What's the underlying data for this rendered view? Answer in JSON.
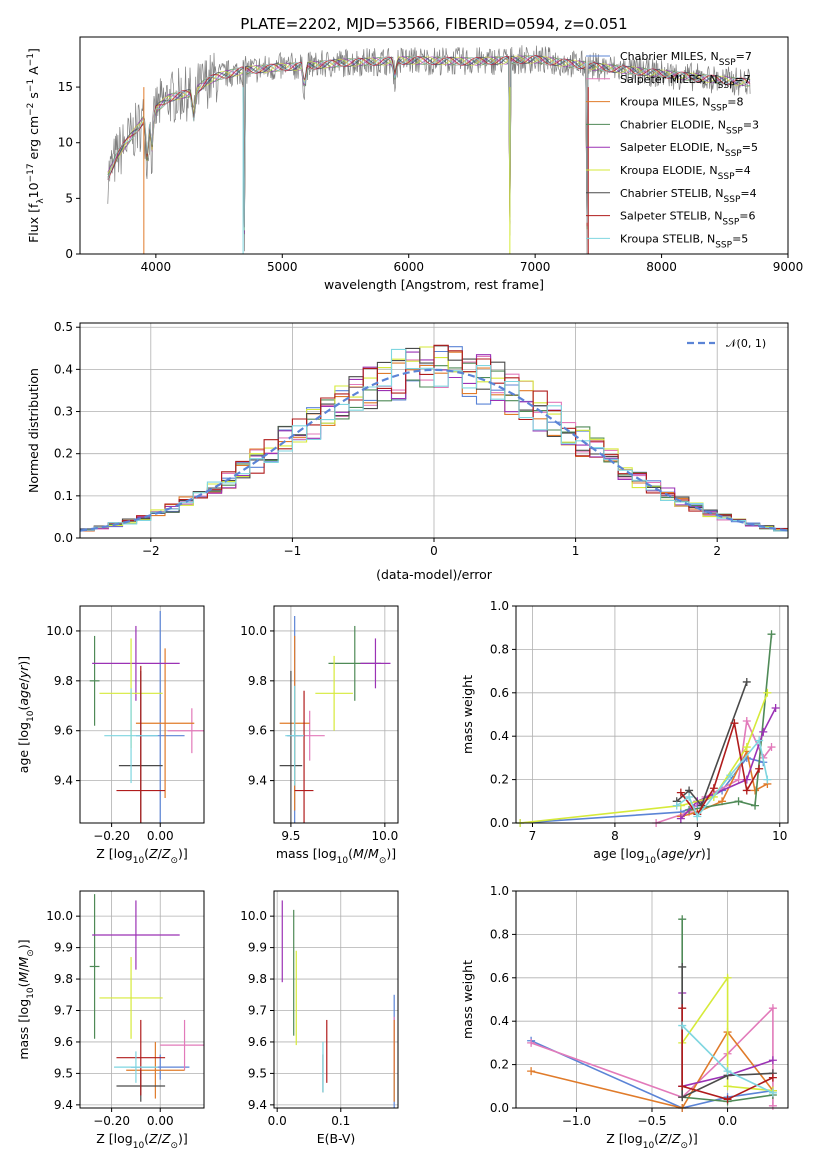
{
  "series_styles": [
    {
      "name": "Chabrier MILES, N$_{SSP}$=7",
      "label_main": "Chabrier MILES, N",
      "label_sub": "SSP",
      "label_tail": "=7",
      "color": "#5b84d6"
    },
    {
      "name": "Salpeter MILES, N$_{SSP}$=7",
      "label_main": "Salpeter MILES, N",
      "label_sub": "SSP",
      "label_tail": "=7",
      "color": "#e27aba"
    },
    {
      "name": "Kroupa MILES, N$_{SSP}$=8",
      "label_main": "Kroupa MILES, N",
      "label_sub": "SSP",
      "label_tail": "=8",
      "color": "#e07b2a"
    },
    {
      "name": "Chabrier ELODIE, N$_{SSP}$=3",
      "label_main": "Chabrier ELODIE, N",
      "label_sub": "SSP",
      "label_tail": "=3",
      "color": "#4f8a57"
    },
    {
      "name": "Salpeter ELODIE, N$_{SSP}$=5",
      "label_main": "Salpeter ELODIE, N",
      "label_sub": "SSP",
      "label_tail": "=5",
      "color": "#9b32b5"
    },
    {
      "name": "Kroupa ELODIE, N$_{SSP}$=4",
      "label_main": "Kroupa ELODIE, N",
      "label_sub": "SSP",
      "label_tail": "=4",
      "color": "#d6ea3a"
    },
    {
      "name": "Chabrier STELIB, N$_{SSP}$=4",
      "label_main": "Chabrier STELIB, N",
      "label_sub": "SSP",
      "label_tail": "=4",
      "color": "#4a4a4a"
    },
    {
      "name": "Salpeter STELIB, N$_{SSP}$=6",
      "label_main": "Salpeter STELIB, N",
      "label_sub": "SSP",
      "label_tail": "=6",
      "color": "#b01c1c"
    },
    {
      "name": "Kroupa STELIB, N$_{SSP}$=5",
      "label_main": "Kroupa STELIB, N",
      "label_sub": "SSP",
      "label_tail": "=5",
      "color": "#7fd6e0"
    }
  ],
  "chart_data": [
    {
      "id": "spectrum",
      "type": "line",
      "title": "PLATE=2202, MJD=53566, FIBERID=0594, z=0.051",
      "xlabel": "wavelength [Angstrom, rest frame]",
      "ylabel_main": "Flux [f",
      "ylabel_lambda": "λ",
      "ylabel_mid": "10",
      "ylabel_exp": "−17",
      "ylabel_tail": " erg cm",
      "ylabel_exp2": "−2",
      "ylabel_tail2": " s",
      "ylabel_exp3": "−1",
      "ylabel_tail3": " A",
      "ylabel_exp4": "−1",
      "ylabel_end": "]",
      "xlim": [
        3400,
        9000
      ],
      "ylim": [
        0,
        19.5
      ],
      "xticks": [
        4000,
        5000,
        6000,
        7000,
        8000,
        9000
      ],
      "yticks": [
        0,
        5,
        10,
        15
      ],
      "legend_position": "right",
      "data_color": "#808080",
      "continuum": [
        [
          3620,
          7.0
        ],
        [
          3700,
          9.0
        ],
        [
          3800,
          10.5
        ],
        [
          3900,
          12.0
        ],
        [
          3950,
          12.5
        ],
        [
          4000,
          13.0
        ],
        [
          4100,
          14.0
        ],
        [
          4200,
          14.3
        ],
        [
          4300,
          14.5
        ],
        [
          4400,
          15.5
        ],
        [
          4500,
          16.0
        ],
        [
          4700,
          16.5
        ],
        [
          5000,
          16.8
        ],
        [
          5200,
          16.9
        ],
        [
          5500,
          17.2
        ],
        [
          6000,
          17.4
        ],
        [
          6500,
          17.3
        ],
        [
          7000,
          17.5
        ],
        [
          7500,
          16.8
        ],
        [
          8000,
          16.2
        ],
        [
          8500,
          15.6
        ],
        [
          8700,
          15.4
        ]
      ],
      "absorption_lines": [
        [
          3933,
          4.0
        ],
        [
          3968,
          3.5
        ],
        [
          4300,
          2.5
        ],
        [
          4700,
          16.0
        ],
        [
          5175,
          2.0
        ],
        [
          5890,
          1.5
        ],
        [
          6800,
          16.0
        ],
        [
          7410,
          16.0
        ]
      ],
      "grid": false
    },
    {
      "id": "residuals",
      "type": "histogram",
      "xlabel": "(data-model)/error",
      "ylabel": "Normed distribution",
      "xlim": [
        -2.5,
        2.5
      ],
      "ylim": [
        0,
        0.51
      ],
      "xticks": [
        -2,
        -1,
        0,
        1,
        2
      ],
      "yticks": [
        0.0,
        0.1,
        0.2,
        0.3,
        0.4,
        0.5
      ],
      "bin_width": 0.1,
      "legend_label": "𝒩(0, 1)",
      "legend_position": "top-right",
      "reference_color": "#5b84d6",
      "grid": true
    },
    {
      "id": "age-vs-Z",
      "type": "errorbar",
      "xlabel": "Z [log",
      "xlabel_sub": "10",
      "xlabel_tail": "(Z/Z",
      "xlabel_sub2": "⊙",
      "xlabel_end": ")]",
      "ylabel": "age  [log",
      "ylabel_sub": "10",
      "ylabel_tail": "(age/yr)]",
      "xlim": [
        -0.33,
        0.18
      ],
      "ylim": [
        9.23,
        10.1
      ],
      "xticks": [
        -0.2,
        0.0
      ],
      "xticklabels": [
        "−0.20",
        "0.00"
      ],
      "yticks": [
        9.4,
        9.6,
        9.8,
        10.0
      ],
      "points": [
        {
          "series": 0,
          "x": 0.0,
          "xerr": 0.1,
          "y": 9.58,
          "yerr": 0.5
        },
        {
          "series": 1,
          "x": 0.13,
          "xerr": 0.1,
          "y": 9.6,
          "yerr": 0.09
        },
        {
          "series": 2,
          "x": 0.02,
          "xerr": 0.12,
          "y": 9.63,
          "yerr": 0.3
        },
        {
          "series": 3,
          "x": -0.27,
          "xerr": 0.02,
          "y": 9.8,
          "yerr": 0.18
        },
        {
          "series": 4,
          "x": -0.1,
          "xerr": 0.18,
          "y": 9.87,
          "yerr": 0.15
        },
        {
          "series": 5,
          "x": -0.12,
          "xerr": 0.13,
          "y": 9.75,
          "yerr": 0.22
        },
        {
          "series": 6,
          "x": -0.08,
          "xerr": 0.09,
          "y": 9.46,
          "yerr": 0.38
        },
        {
          "series": 7,
          "x": -0.08,
          "xerr": 0.1,
          "y": 9.36,
          "yerr": 0.5
        },
        {
          "series": 8,
          "x": -0.12,
          "xerr": 0.11,
          "y": 9.58,
          "yerr": 0.19
        }
      ],
      "grid": true
    },
    {
      "id": "age-vs-mass",
      "type": "errorbar",
      "xlabel": "mass [log",
      "xlabel_sub": "10",
      "xlabel_tail": "(M/M",
      "xlabel_sub2": "⊙",
      "xlabel_end": ")]",
      "xlim": [
        9.41,
        10.07
      ],
      "ylim": [
        9.23,
        10.1
      ],
      "xticks": [
        9.5,
        10.0
      ],
      "xticklabels": [
        "9.5",
        "10.0"
      ],
      "yticks": [
        9.4,
        9.6,
        9.8,
        10.0
      ],
      "points": [
        {
          "series": 0,
          "x": 9.52,
          "xerr": 0.04,
          "y": 9.58,
          "yerr": 0.48
        },
        {
          "series": 1,
          "x": 9.6,
          "xerr": 0.08,
          "y": 9.58,
          "yerr": 0.1
        },
        {
          "series": 2,
          "x": 9.52,
          "xerr": 0.08,
          "y": 9.63,
          "yerr": 0.35
        },
        {
          "series": 3,
          "x": 9.84,
          "xerr": 0.14,
          "y": 9.87,
          "yerr": 0.15
        },
        {
          "series": 4,
          "x": 9.95,
          "xerr": 0.08,
          "y": 9.87,
          "yerr": 0.1
        },
        {
          "series": 5,
          "x": 9.73,
          "xerr": 0.1,
          "y": 9.75,
          "yerr": 0.15
        },
        {
          "series": 6,
          "x": 9.5,
          "xerr": 0.06,
          "y": 9.46,
          "yerr": 0.38
        },
        {
          "series": 7,
          "x": 9.57,
          "xerr": 0.05,
          "y": 9.36,
          "yerr": 0.4
        },
        {
          "series": 8,
          "x": 9.52,
          "xerr": 0.05,
          "y": 9.58,
          "yerr": 0.2
        }
      ],
      "grid": true
    },
    {
      "id": "weight-vs-age",
      "type": "line",
      "xlabel": "age  [log",
      "xlabel_sub": "10",
      "xlabel_tail": "(age/yr)]",
      "ylabel": "mass weight",
      "xlim": [
        6.8,
        10.1
      ],
      "ylim": [
        0,
        1.0
      ],
      "xticks": [
        7,
        8,
        9,
        10
      ],
      "yticks": [
        0.0,
        0.2,
        0.4,
        0.6,
        0.8,
        1.0
      ],
      "series": [
        {
          "series": 0,
          "x": [
            6.85,
            8.8,
            9.0,
            9.3,
            9.6,
            9.8
          ],
          "y": [
            0.0,
            0.05,
            0.08,
            0.15,
            0.3,
            0.28
          ]
        },
        {
          "series": 1,
          "x": [
            8.5,
            8.9,
            9.1,
            9.5,
            9.6,
            9.8,
            9.9
          ],
          "y": [
            0.0,
            0.05,
            0.12,
            0.2,
            0.47,
            0.3,
            0.35
          ]
        },
        {
          "series": 2,
          "x": [
            8.8,
            9.0,
            9.3,
            9.6,
            9.7,
            9.85
          ],
          "y": [
            0.03,
            0.05,
            0.1,
            0.33,
            0.15,
            0.18
          ]
        },
        {
          "series": 3,
          "x": [
            8.9,
            9.5,
            9.7,
            9.9
          ],
          "y": [
            0.06,
            0.1,
            0.08,
            0.87
          ]
        },
        {
          "series": 4,
          "x": [
            8.8,
            9.0,
            9.6,
            9.8,
            9.95
          ],
          "y": [
            0.02,
            0.1,
            0.2,
            0.42,
            0.53
          ]
        },
        {
          "series": 5,
          "x": [
            6.85,
            8.8,
            9.2,
            9.6,
            9.85
          ],
          "y": [
            0.0,
            0.08,
            0.12,
            0.35,
            0.6
          ]
        },
        {
          "series": 6,
          "x": [
            8.75,
            8.9,
            9.05,
            9.6
          ],
          "y": [
            0.1,
            0.15,
            0.08,
            0.65
          ]
        },
        {
          "series": 7,
          "x": [
            8.8,
            9.0,
            9.2,
            9.45,
            9.6,
            9.75
          ],
          "y": [
            0.14,
            0.04,
            0.16,
            0.46,
            0.15,
            0.25
          ]
        },
        {
          "series": 8,
          "x": [
            8.75,
            8.9,
            9.0,
            9.4,
            9.75,
            9.85
          ],
          "y": [
            0.08,
            0.12,
            0.03,
            0.22,
            0.38,
            0.2
          ]
        }
      ],
      "grid": true
    },
    {
      "id": "mass-vs-Z",
      "type": "errorbar",
      "xlabel": "Z [log",
      "xlabel_sub": "10",
      "xlabel_tail": "(Z/Z",
      "xlabel_sub2": "⊙",
      "xlabel_end": ")]",
      "ylabel": "mass [log",
      "ylabel_sub": "10",
      "ylabel_tail": "(M/M",
      "ylabel_sub2": "⊙",
      "ylabel_end": ")]",
      "xlim": [
        -0.33,
        0.18
      ],
      "ylim": [
        9.39,
        10.08
      ],
      "xticks": [
        -0.2,
        0.0
      ],
      "xticklabels": [
        "−0.20",
        "0.00"
      ],
      "yticks": [
        9.4,
        9.5,
        9.6,
        9.7,
        9.8,
        9.9,
        10.0
      ],
      "points": [
        {
          "series": 0,
          "x": 0.0,
          "xerr": 0.12,
          "y": 9.52,
          "yerr": 0.04
        },
        {
          "series": 1,
          "x": 0.1,
          "xerr": 0.1,
          "y": 9.59,
          "yerr": 0.08
        },
        {
          "series": 2,
          "x": -0.02,
          "xerr": 0.12,
          "y": 9.51,
          "yerr": 0.09
        },
        {
          "series": 3,
          "x": -0.27,
          "xerr": 0.02,
          "y": 9.84,
          "yerr": 0.23
        },
        {
          "series": 4,
          "x": -0.1,
          "xerr": 0.18,
          "y": 9.94,
          "yerr": 0.11
        },
        {
          "series": 5,
          "x": -0.12,
          "xerr": 0.13,
          "y": 9.74,
          "yerr": 0.13
        },
        {
          "series": 6,
          "x": -0.08,
          "xerr": 0.1,
          "y": 9.46,
          "yerr": 0.05
        },
        {
          "series": 7,
          "x": -0.08,
          "xerr": 0.1,
          "y": 9.55,
          "yerr": 0.12
        },
        {
          "series": 8,
          "x": -0.1,
          "xerr": 0.09,
          "y": 9.52,
          "yerr": 0.05
        }
      ],
      "grid": true
    },
    {
      "id": "mass-vs-ebv",
      "type": "errorbar",
      "xlabel": "E(B-V)",
      "xlim": [
        -0.005,
        0.19
      ],
      "ylim": [
        9.39,
        10.08
      ],
      "xticks": [
        0.0,
        0.1
      ],
      "xticklabels": [
        "0.0",
        "0.1"
      ],
      "yticks": [
        9.4,
        9.5,
        9.6,
        9.7,
        9.8,
        9.9,
        10.0
      ],
      "points": [
        {
          "series": 0,
          "x": 0.184,
          "xerr": 0.0,
          "y": 9.55,
          "yerr": 0.2
        },
        {
          "series": 1,
          "x": 0.184,
          "xerr": 0.0,
          "y": 9.59,
          "yerr": 0.09
        },
        {
          "series": 2,
          "x": 0.184,
          "xerr": 0.0,
          "y": 9.54,
          "yerr": 0.13
        },
        {
          "series": 3,
          "x": 0.026,
          "xerr": 0.0,
          "y": 9.82,
          "yerr": 0.2
        },
        {
          "series": 4,
          "x": 0.008,
          "xerr": 0.0,
          "y": 9.92,
          "yerr": 0.13
        },
        {
          "series": 5,
          "x": 0.03,
          "xerr": 0.0,
          "y": 9.74,
          "yerr": 0.15
        },
        {
          "series": 6,
          "x": 0.072,
          "xerr": 0.0,
          "y": 9.5,
          "yerr": 0.06
        },
        {
          "series": 7,
          "x": 0.078,
          "xerr": 0.0,
          "y": 9.57,
          "yerr": 0.1
        },
        {
          "series": 8,
          "x": 0.072,
          "xerr": 0.0,
          "y": 9.52,
          "yerr": 0.08
        }
      ],
      "grid": true
    },
    {
      "id": "weight-vs-Z",
      "type": "line",
      "xlabel": "Z [log",
      "xlabel_sub": "10",
      "xlabel_tail": "(Z/Z",
      "xlabel_sub2": "⊙",
      "xlabel_end": ")]",
      "ylabel": "mass weight",
      "xlim": [
        -1.4,
        0.4
      ],
      "ylim": [
        0,
        1.0
      ],
      "xticks": [
        -1.0,
        -0.5,
        0.0
      ],
      "xticklabels": [
        "−1.0",
        "−0.5",
        "0.0"
      ],
      "yticks": [
        0.0,
        0.2,
        0.4,
        0.6,
        0.8,
        1.0
      ],
      "series": [
        {
          "series": 0,
          "x": [
            -1.3,
            -0.3,
            0.0,
            0.3
          ],
          "y": [
            0.31,
            0.0,
            0.05,
            0.08
          ]
        },
        {
          "series": 1,
          "x": [
            -1.3,
            -0.3,
            0.0,
            0.3,
            0.3
          ],
          "y": [
            0.3,
            0.05,
            0.25,
            0.46,
            0.01
          ]
        },
        {
          "series": 2,
          "x": [
            -1.3,
            -0.3,
            0.0,
            0.3
          ],
          "y": [
            0.17,
            0.0,
            0.35,
            0.08
          ]
        },
        {
          "series": 3,
          "x": [
            -0.3,
            -0.3,
            0.0,
            0.3
          ],
          "y": [
            0.87,
            0.05,
            0.03,
            0.06
          ]
        },
        {
          "series": 4,
          "x": [
            -0.3,
            -0.3,
            0.0,
            0.3
          ],
          "y": [
            0.53,
            0.1,
            0.15,
            0.22
          ]
        },
        {
          "series": 5,
          "x": [
            -0.3,
            0.0,
            0.0,
            0.3
          ],
          "y": [
            0.3,
            0.6,
            0.1,
            0.08
          ]
        },
        {
          "series": 6,
          "x": [
            -0.3,
            -0.3,
            0.0,
            0.3
          ],
          "y": [
            0.65,
            0.05,
            0.15,
            0.16
          ]
        },
        {
          "series": 7,
          "x": [
            -0.3,
            -0.3,
            0.0,
            0.3
          ],
          "y": [
            0.46,
            0.1,
            0.04,
            0.14
          ]
        },
        {
          "series": 8,
          "x": [
            -0.3,
            0.0,
            0.3
          ],
          "y": [
            0.38,
            0.17,
            0.07
          ]
        }
      ],
      "grid": true
    }
  ]
}
